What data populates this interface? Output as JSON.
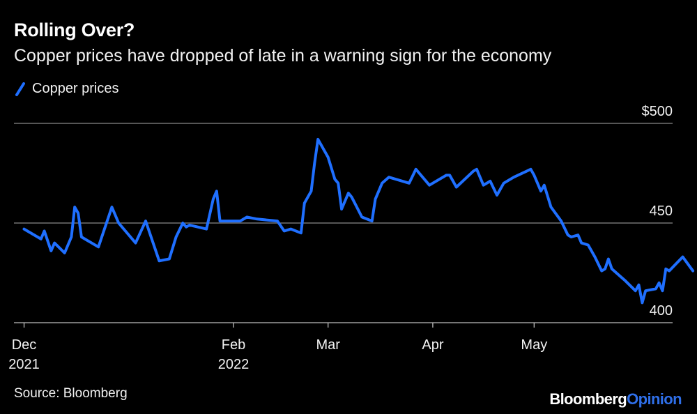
{
  "header": {
    "title": "Rolling Over?",
    "subtitle": "Copper prices have dropped of late in a warning sign for the economy"
  },
  "legend": {
    "label": "Copper prices",
    "color": "#1f6fff"
  },
  "footer": {
    "source": "Source: Bloomberg",
    "brand_main": "Bloomberg",
    "brand_accent": "Opinion",
    "brand_accent_color": "#2f6fe9"
  },
  "chart_data": {
    "type": "line",
    "title": "Rolling Over?",
    "subtitle": "Copper prices have dropped of late in a warning sign for the economy",
    "xlabel": "",
    "ylabel": "",
    "ylim": [
      400,
      500
    ],
    "y_ticks": [
      {
        "value": 500,
        "label": "$500"
      },
      {
        "value": 450,
        "label": "450"
      },
      {
        "value": 400,
        "label": "400"
      }
    ],
    "x_ticks": [
      {
        "date": "2021-12-01",
        "line1": "Dec",
        "line2": "2021"
      },
      {
        "date": "2022-02-01",
        "line1": "Feb",
        "line2": "2022"
      },
      {
        "date": "2022-03-01",
        "line1": "Mar",
        "line2": ""
      },
      {
        "date": "2022-04-01",
        "line1": "Apr",
        "line2": ""
      },
      {
        "date": "2022-05-01",
        "line1": "May",
        "line2": ""
      }
    ],
    "xlim": [
      "2021-11-28",
      "2022-06-11"
    ],
    "grid": true,
    "legend_position": "top-left",
    "series": [
      {
        "name": "Copper prices",
        "color": "#1f6fff",
        "points": [
          [
            "2021-12-01",
            447
          ],
          [
            "2021-12-06",
            442
          ],
          [
            "2021-12-07",
            446
          ],
          [
            "2021-12-09",
            436
          ],
          [
            "2021-12-10",
            440
          ],
          [
            "2021-12-13",
            435
          ],
          [
            "2021-12-15",
            443
          ],
          [
            "2021-12-16",
            458
          ],
          [
            "2021-12-17",
            455
          ],
          [
            "2021-12-18",
            443
          ],
          [
            "2021-12-23",
            438
          ],
          [
            "2021-12-27",
            458
          ],
          [
            "2021-12-29",
            450
          ],
          [
            "2022-01-03",
            440
          ],
          [
            "2022-01-06",
            451
          ],
          [
            "2022-01-10",
            431
          ],
          [
            "2022-01-13",
            432
          ],
          [
            "2022-01-15",
            443
          ],
          [
            "2022-01-17",
            450
          ],
          [
            "2022-01-18",
            448
          ],
          [
            "2022-01-19",
            449
          ],
          [
            "2022-01-24",
            447
          ],
          [
            "2022-01-26",
            462
          ],
          [
            "2022-01-27",
            466
          ],
          [
            "2022-01-28",
            451
          ],
          [
            "2022-02-01",
            451
          ],
          [
            "2022-02-03",
            451
          ],
          [
            "2022-02-05",
            453
          ],
          [
            "2022-02-08",
            452
          ],
          [
            "2022-02-14",
            451
          ],
          [
            "2022-02-16",
            446
          ],
          [
            "2022-02-18",
            447
          ],
          [
            "2022-02-21",
            445
          ],
          [
            "2022-02-22",
            460
          ],
          [
            "2022-02-24",
            466
          ],
          [
            "2022-02-25",
            480
          ],
          [
            "2022-02-26",
            492
          ],
          [
            "2022-03-01",
            483
          ],
          [
            "2022-03-03",
            472
          ],
          [
            "2022-03-04",
            470
          ],
          [
            "2022-03-05",
            457
          ],
          [
            "2022-03-07",
            465
          ],
          [
            "2022-03-08",
            463
          ],
          [
            "2022-03-11",
            453
          ],
          [
            "2022-03-14",
            451
          ],
          [
            "2022-03-15",
            462
          ],
          [
            "2022-03-17",
            470
          ],
          [
            "2022-03-19",
            473
          ],
          [
            "2022-03-23",
            471
          ],
          [
            "2022-03-25",
            470
          ],
          [
            "2022-03-27",
            477
          ],
          [
            "2022-03-31",
            469
          ],
          [
            "2022-04-01",
            470
          ],
          [
            "2022-04-05",
            474
          ],
          [
            "2022-04-06",
            474
          ],
          [
            "2022-04-08",
            468
          ],
          [
            "2022-04-13",
            476
          ],
          [
            "2022-04-14",
            477
          ],
          [
            "2022-04-16",
            469
          ],
          [
            "2022-04-18",
            471
          ],
          [
            "2022-04-20",
            464
          ],
          [
            "2022-04-22",
            470
          ],
          [
            "2022-04-25",
            473
          ],
          [
            "2022-04-30",
            477
          ],
          [
            "2022-05-01",
            474
          ],
          [
            "2022-05-03",
            466
          ],
          [
            "2022-05-04",
            469
          ],
          [
            "2022-05-06",
            458
          ],
          [
            "2022-05-09",
            451
          ],
          [
            "2022-05-11",
            444
          ],
          [
            "2022-05-12",
            443
          ],
          [
            "2022-05-14",
            444
          ],
          [
            "2022-05-15",
            440
          ],
          [
            "2022-05-17",
            439
          ],
          [
            "2022-05-19",
            433
          ],
          [
            "2022-05-21",
            426
          ],
          [
            "2022-05-22",
            427
          ],
          [
            "2022-05-23",
            432
          ],
          [
            "2022-05-24",
            427
          ],
          [
            "2022-05-28",
            421
          ],
          [
            "2022-05-31",
            416
          ],
          [
            "2022-06-01",
            419
          ],
          [
            "2022-06-02",
            410
          ],
          [
            "2022-06-03",
            416
          ],
          [
            "2022-06-06",
            417
          ],
          [
            "2022-06-07",
            420
          ],
          [
            "2022-06-08",
            416
          ],
          [
            "2022-06-09",
            427
          ],
          [
            "2022-06-10",
            426
          ],
          [
            "2022-06-14",
            433
          ],
          [
            "2022-06-17",
            426
          ]
        ]
      }
    ]
  }
}
